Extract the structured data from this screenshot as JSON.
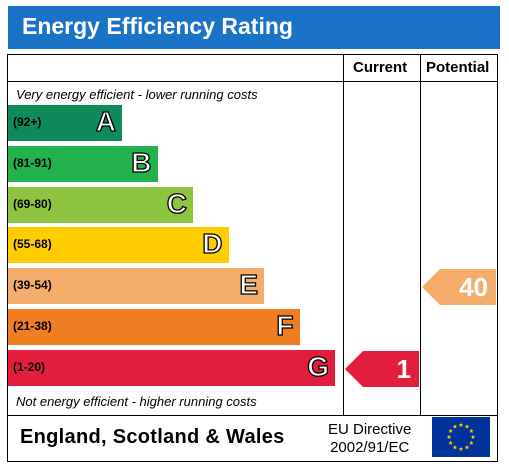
{
  "title": "Energy Efficiency Rating",
  "columns": {
    "current": "Current",
    "potential": "Potential"
  },
  "notes": {
    "top": "Very energy efficient - lower running costs",
    "bottom": "Not energy efficient - higher running costs"
  },
  "chart_data": {
    "type": "bar",
    "title": "Energy Efficiency Rating",
    "bands": [
      {
        "letter": "A",
        "range": "(92+)",
        "color": "#0e8a5b"
      },
      {
        "letter": "B",
        "range": "(81-91)",
        "color": "#22b14c"
      },
      {
        "letter": "C",
        "range": "(69-80)",
        "color": "#8cc43f"
      },
      {
        "letter": "D",
        "range": "(55-68)",
        "color": "#ffcc00"
      },
      {
        "letter": "E",
        "range": "(39-54)",
        "color": "#f5ad6c"
      },
      {
        "letter": "F",
        "range": "(21-38)",
        "color": "#ef7d22"
      },
      {
        "letter": "G",
        "range": "(1-20)",
        "color": "#e31d3c"
      }
    ],
    "current": {
      "value": 1,
      "band": "G",
      "color": "#e31d3c"
    },
    "potential": {
      "value": 40,
      "band": "E",
      "color": "#f5ad6c"
    }
  },
  "footer": {
    "country": "England, Scotland & Wales",
    "directive_line1": "EU Directive",
    "directive_line2": "2002/91/EC",
    "flag_color": "#003399",
    "star_color": "#ffcc00"
  }
}
